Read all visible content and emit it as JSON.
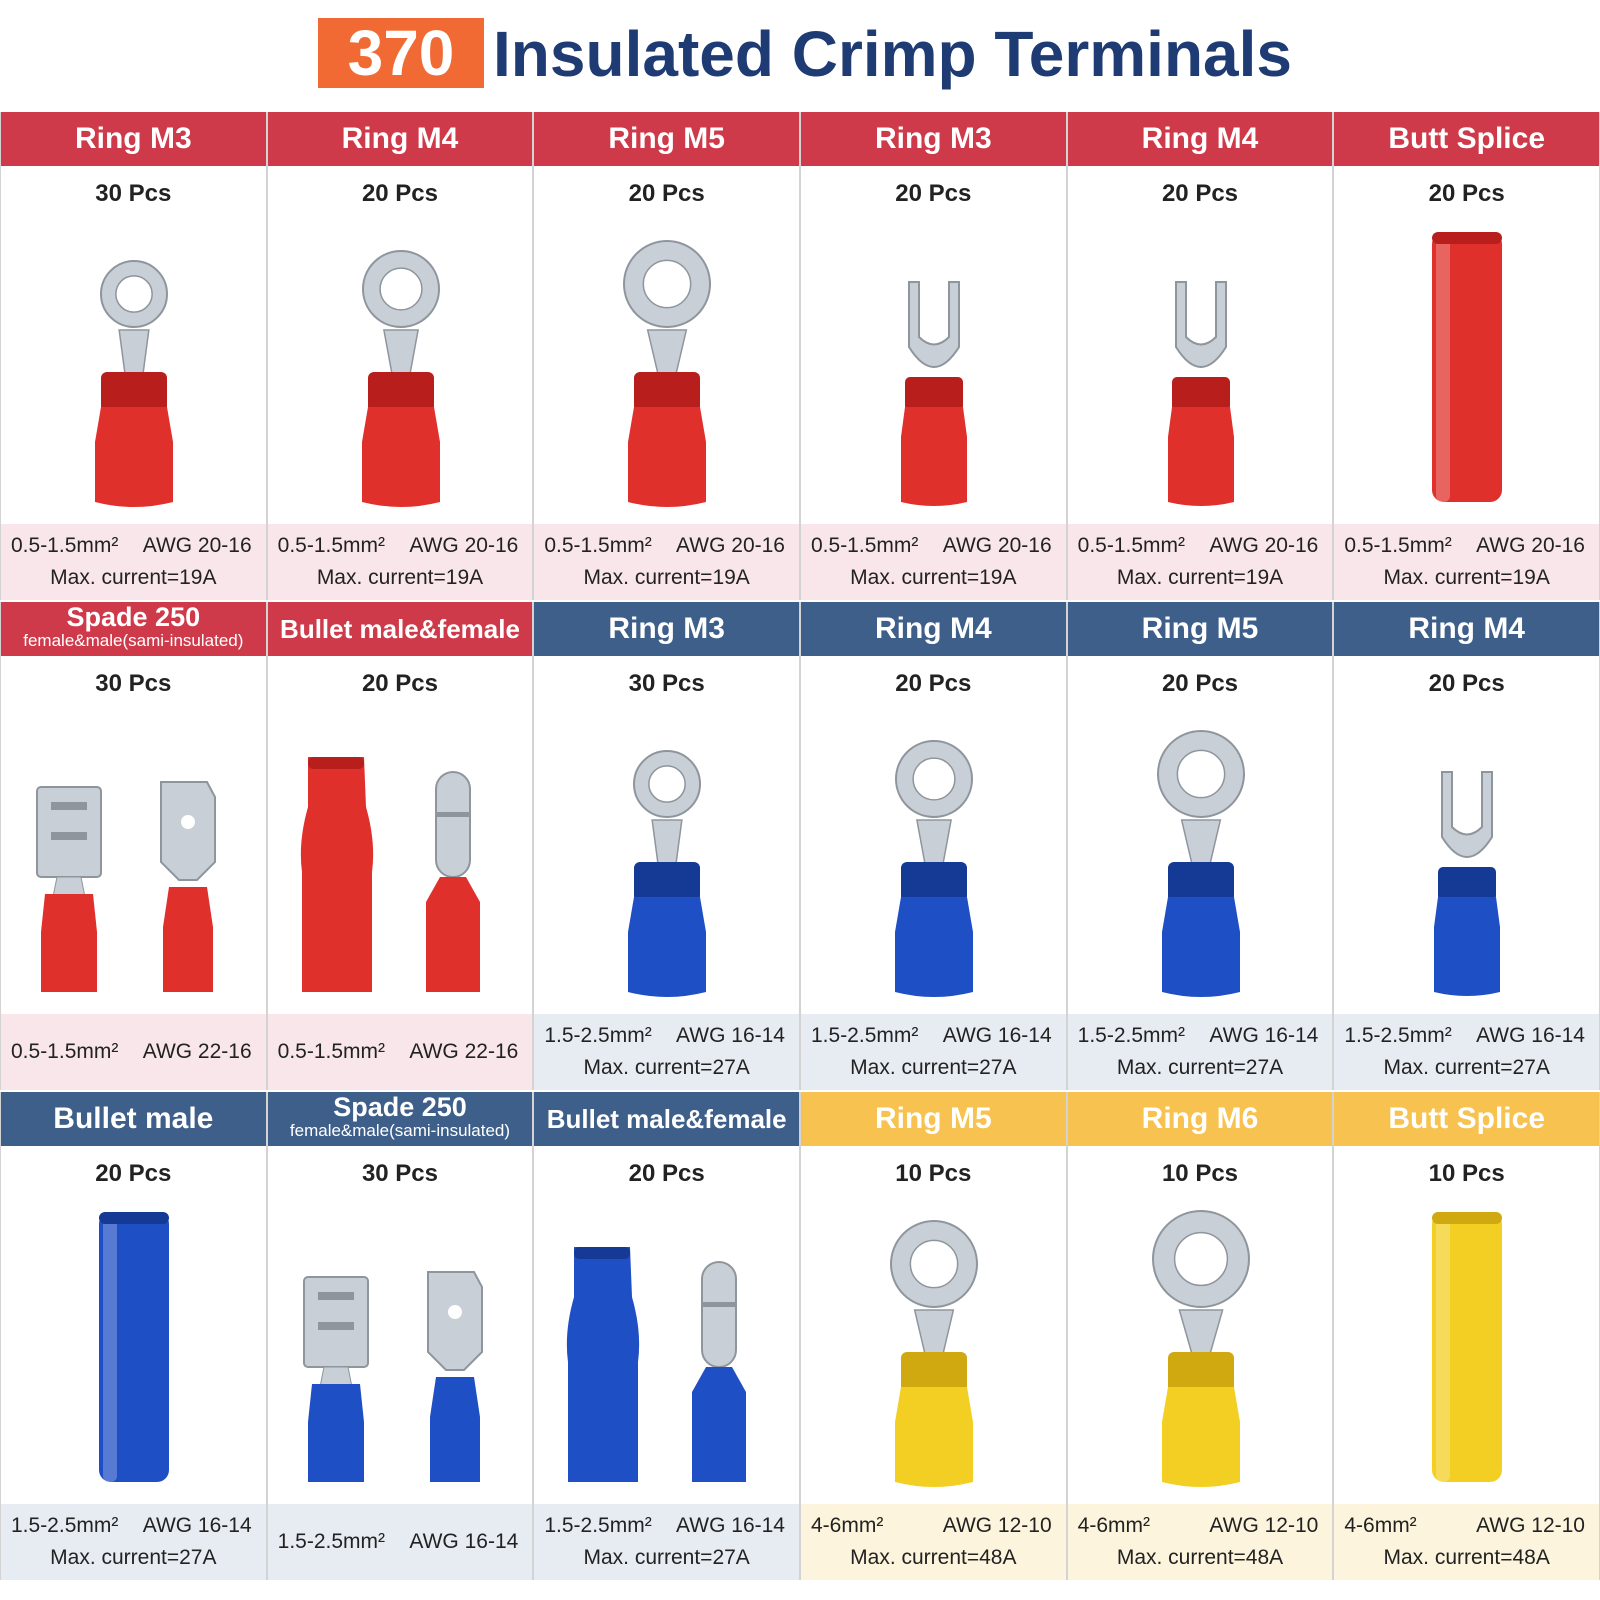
{
  "title": {
    "count": "370",
    "text": "Insulated Crimp Terminals"
  },
  "colors": {
    "red": "#cf3a4a",
    "blue": "#3d5f8a",
    "yellow": "#f7c24f",
    "red_foot": "#f9e6ea",
    "blue_foot": "#e7ecf3",
    "yellow_foot": "#fcf4dc"
  },
  "rows": [
    {
      "cells": [
        {
          "title": "Ring M3",
          "pcs": "30 Pcs",
          "spec": "0.5-1.5mm²",
          "awg": "AWG 20-16",
          "current": "Max. current=19A",
          "color": "red",
          "icon": "ring-terminal-icon"
        },
        {
          "title": "Ring M4",
          "pcs": "20 Pcs",
          "spec": "0.5-1.5mm²",
          "awg": "AWG 20-16",
          "current": "Max. current=19A",
          "color": "red",
          "icon": "ring-terminal-icon"
        },
        {
          "title": "Ring M5",
          "pcs": "20 Pcs",
          "spec": "0.5-1.5mm²",
          "awg": "AWG 20-16",
          "current": "Max. current=19A",
          "color": "red",
          "icon": "ring-terminal-icon"
        },
        {
          "title": "Ring M3",
          "pcs": "20 Pcs",
          "spec": "0.5-1.5mm²",
          "awg": "AWG 20-16",
          "current": "Max. current=19A",
          "color": "red",
          "icon": "fork-terminal-icon"
        },
        {
          "title": "Ring M4",
          "pcs": "20 Pcs",
          "spec": "0.5-1.5mm²",
          "awg": "AWG 20-16",
          "current": "Max. current=19A",
          "color": "red",
          "icon": "fork-terminal-icon"
        },
        {
          "title": "Butt Splice",
          "pcs": "20 Pcs",
          "spec": "0.5-1.5mm²",
          "awg": "AWG 20-16",
          "current": "Max. current=19A",
          "color": "red",
          "icon": "butt-splice-icon"
        }
      ]
    },
    {
      "cells": [
        {
          "title": "Spade 250",
          "subtitle": "female&male(sami-insulated)",
          "pcs": "30 Pcs",
          "spec": "0.5-1.5mm²",
          "awg": "AWG 22-16",
          "color": "red",
          "icon": "spade-terminal-icon"
        },
        {
          "title": "Bullet male&female",
          "pcs": "20 Pcs",
          "spec": "0.5-1.5mm²",
          "awg": "AWG 22-16",
          "color": "red",
          "icon": "bullet-terminal-icon"
        },
        {
          "title": "Ring M3",
          "pcs": "30 Pcs",
          "spec": "1.5-2.5mm²",
          "awg": "AWG 16-14",
          "current": "Max. current=27A",
          "color": "blue",
          "icon": "ring-terminal-icon"
        },
        {
          "title": "Ring M4",
          "pcs": "20 Pcs",
          "spec": "1.5-2.5mm²",
          "awg": "AWG 16-14",
          "current": "Max. current=27A",
          "color": "blue",
          "icon": "ring-terminal-icon"
        },
        {
          "title": "Ring M5",
          "pcs": "20 Pcs",
          "spec": "1.5-2.5mm²",
          "awg": "AWG 16-14",
          "current": "Max. current=27A",
          "color": "blue",
          "icon": "ring-terminal-icon"
        },
        {
          "title": "Ring M4",
          "pcs": "20 Pcs",
          "spec": "1.5-2.5mm²",
          "awg": "AWG 16-14",
          "current": "Max. current=27A",
          "color": "blue",
          "icon": "fork-terminal-icon"
        }
      ]
    },
    {
      "cells": [
        {
          "title": "Bullet male",
          "pcs": "20 Pcs",
          "spec": "1.5-2.5mm²",
          "awg": "AWG 16-14",
          "current": "Max. current=27A",
          "color": "blue",
          "icon": "butt-splice-icon"
        },
        {
          "title": "Spade 250",
          "subtitle": "female&male(sami-insulated)",
          "pcs": "30 Pcs",
          "spec": "1.5-2.5mm²",
          "awg": "AWG 16-14",
          "color": "blue",
          "icon": "spade-terminal-icon"
        },
        {
          "title": "Bullet male&female",
          "pcs": "20 Pcs",
          "spec": "1.5-2.5mm²",
          "awg": "AWG 16-14",
          "current": "Max. current=27A",
          "color": "blue",
          "icon": "bullet-terminal-icon"
        },
        {
          "title": "Ring M5",
          "pcs": "10 Pcs",
          "spec": "4-6mm²",
          "awg": "AWG 12-10",
          "current": "Max. current=48A",
          "color": "yellow",
          "icon": "ring-terminal-icon"
        },
        {
          "title": "Ring M6",
          "pcs": "10 Pcs",
          "spec": "4-6mm²",
          "awg": "AWG 12-10",
          "current": "Max. current=48A",
          "color": "yellow",
          "icon": "ring-terminal-icon"
        },
        {
          "title": "Butt Splice",
          "pcs": "10 Pcs",
          "spec": "4-6mm²",
          "awg": "AWG 12-10",
          "current": "Max. current=48A",
          "color": "yellow",
          "icon": "butt-splice-icon"
        }
      ]
    }
  ]
}
